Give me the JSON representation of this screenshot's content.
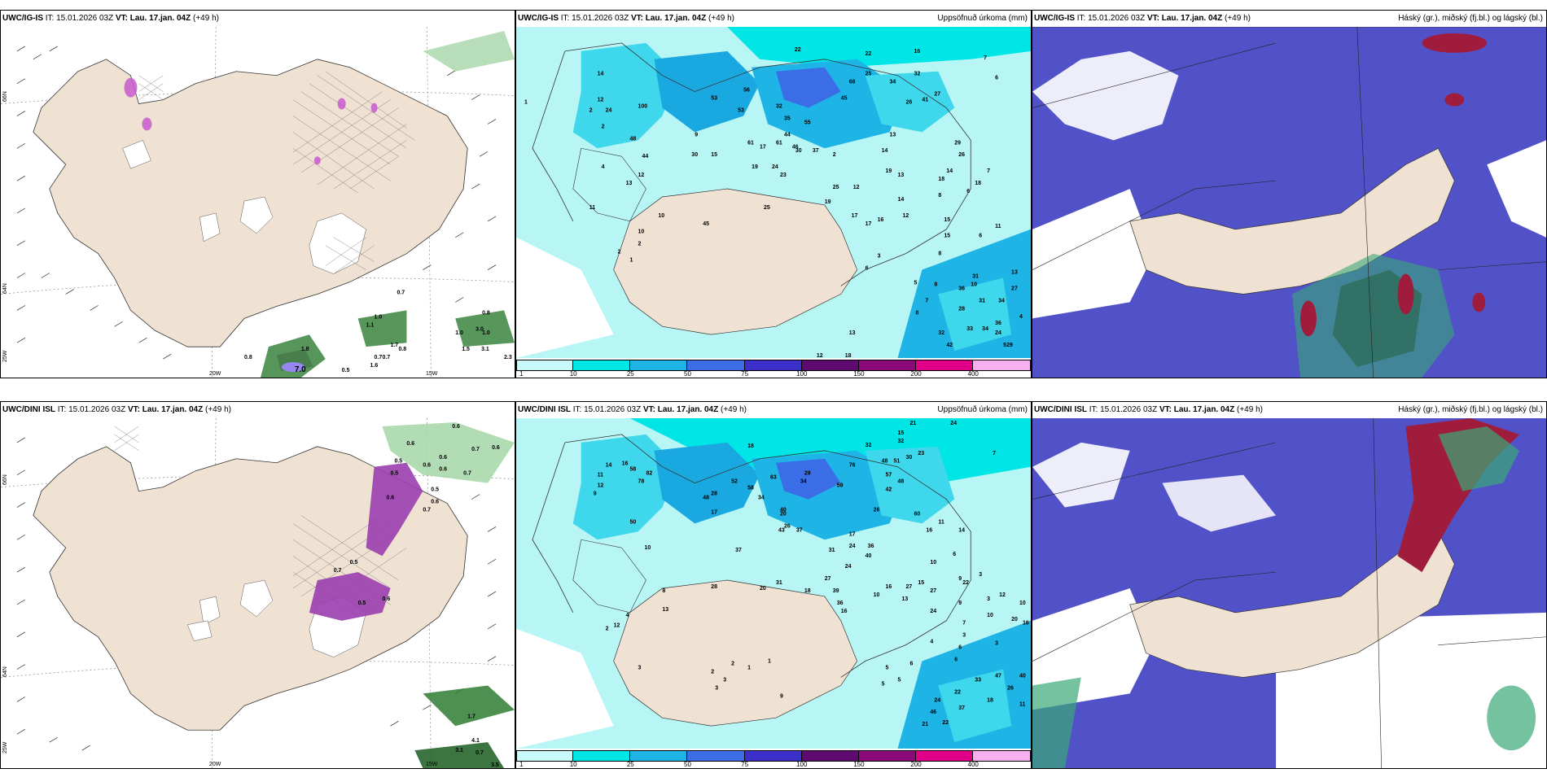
{
  "panels": [
    {
      "id": "p1",
      "model": "UWC/IG-IS",
      "it_label": "IT:",
      "it_value": "15.01.2026 03Z",
      "vt_label": "VT:",
      "vt_value": "Lau. 17.jan. 04Z",
      "lead": "(+49 h)",
      "right_title": "",
      "lat_labels": [
        "66N",
        "64N",
        "25W"
      ],
      "lon_labels": [
        "20W",
        "15W"
      ],
      "values": [
        "0.7",
        "1.0",
        "1.1",
        "0.8",
        "0.8",
        "1.0",
        "1.5",
        "3.1",
        "2.3",
        "1.0",
        "0.7",
        "1.8",
        "0.7",
        "7.0",
        "0.5",
        "1.6",
        "1.7",
        "0.8",
        "3.0"
      ]
    },
    {
      "id": "p2",
      "model": "UWC/IG-IS",
      "it_label": "IT:",
      "it_value": "15.01.2026 03Z",
      "vt_label": "VT:",
      "vt_value": "Lau. 17.jan. 04Z",
      "lead": "(+49 h)",
      "right_title": "Uppsöfnuð úrkoma (mm)",
      "values": [
        "22",
        "22",
        "16",
        "7",
        "14",
        "6",
        "53",
        "56",
        "66",
        "25",
        "34",
        "32",
        "7",
        "12",
        "24",
        "100",
        "32",
        "53",
        "35",
        "45",
        "26",
        "41",
        "27",
        "1",
        "2",
        "48",
        "55",
        "44",
        "61",
        "30",
        "2",
        "9",
        "61",
        "30",
        "17",
        "46",
        "37",
        "13",
        "29",
        "4",
        "44",
        "15",
        "19",
        "24",
        "14",
        "19",
        "26",
        "12",
        "13",
        "23",
        "25",
        "12",
        "13",
        "7",
        "14",
        "18",
        "18",
        "19",
        "6",
        "8",
        "11",
        "25",
        "10",
        "17",
        "17",
        "16",
        "12",
        "15",
        "14",
        "2",
        "15",
        "2",
        "1",
        "10",
        "45",
        "6",
        "8",
        "3",
        "5",
        "6",
        "8",
        "10",
        "13",
        "27",
        "7",
        "28",
        "31",
        "34",
        "8",
        "32",
        "33",
        "36",
        "34",
        "24",
        "29",
        "4",
        "42",
        "5",
        "12",
        "11",
        "31",
        "36",
        "13",
        "18"
      ],
      "colorbar": {
        "ticks": [
          "1",
          "10",
          "25",
          "50",
          "75",
          "100",
          "150",
          "200",
          "400"
        ],
        "colors": [
          "#c8fafa",
          "#00e5e5",
          "#1fb4e6",
          "#3b6ee6",
          "#3a2fc8",
          "#5e0a6e",
          "#8a0a7a",
          "#e0008a",
          "#f5b0f0"
        ]
      }
    },
    {
      "id": "p3",
      "model": "UWC/IG-IS",
      "it_label": "IT:",
      "it_value": "15.01.2026 03Z",
      "vt_label": "VT:",
      "vt_value": "Lau. 17.jan. 04Z",
      "lead": "(+49 h)",
      "right_title": "Háský (gr.), miðský (fj.bl.) og lágský (bl.)"
    },
    {
      "id": "p4",
      "model": "UWC/DINI ISL",
      "it_label": "IT:",
      "it_value": "15.01.2026 03Z",
      "vt_label": "VT:",
      "vt_value": "Lau. 17.jan. 04Z",
      "lead": "(+49 h)",
      "right_title": "",
      "lat_labels": [
        "66N",
        "64N",
        "25W"
      ],
      "lon_labels": [
        "20W",
        "15W"
      ],
      "values": [
        "0.6",
        "0.6",
        "0.7",
        "0.6",
        "0.5",
        "0.6",
        "0.6",
        "0.6",
        "0.7",
        "0.5",
        "0.6",
        "0.7",
        "0.5",
        "0.6",
        "0.5",
        "0.7",
        "0.5",
        "0.6",
        "3.1",
        "0.7",
        "4.1",
        "3.5",
        "1.7"
      ]
    },
    {
      "id": "p5",
      "model": "UWC/DINI ISL",
      "it_label": "IT:",
      "it_value": "15.01.2026 03Z",
      "vt_label": "VT:",
      "vt_value": "Lau. 17.jan. 04Z",
      "lead": "(+49 h)",
      "right_title": "Uppsöfnuð úrkoma (mm)",
      "values": [
        "21",
        "24",
        "32",
        "32",
        "18",
        "15",
        "23",
        "7",
        "14",
        "16",
        "76",
        "48",
        "51",
        "30",
        "11",
        "12",
        "58",
        "52",
        "63",
        "58",
        "59",
        "42",
        "48",
        "57",
        "82",
        "9",
        "78",
        "29",
        "60",
        "26",
        "28",
        "17",
        "48",
        "34",
        "34",
        "40",
        "17",
        "16",
        "50",
        "43",
        "37",
        "26",
        "10",
        "20",
        "37",
        "31",
        "24",
        "36",
        "40",
        "24",
        "27",
        "39",
        "31",
        "18",
        "11",
        "14",
        "27",
        "13",
        "9",
        "24",
        "9",
        "13",
        "36",
        "16",
        "8",
        "28",
        "10",
        "16",
        "27",
        "15",
        "20",
        "22",
        "10",
        "3",
        "4",
        "2",
        "12",
        "6",
        "10",
        "3",
        "7",
        "3",
        "6",
        "3",
        "6",
        "12",
        "10",
        "20",
        "16",
        "33",
        "47",
        "40",
        "26",
        "22",
        "24",
        "18",
        "4",
        "11",
        "46",
        "37",
        "21",
        "22",
        "3",
        "2",
        "3",
        "2",
        "3",
        "1",
        "1",
        "9",
        "5",
        "5",
        "5",
        "6"
      ],
      "colorbar": {
        "ticks": [
          "1",
          "10",
          "25",
          "50",
          "75",
          "100",
          "150",
          "200",
          "400"
        ],
        "colors": [
          "#c8fafa",
          "#00e5e5",
          "#1fb4e6",
          "#3b6ee6",
          "#3a2fc8",
          "#5e0a6e",
          "#8a0a7a",
          "#e0008a",
          "#f5b0f0"
        ]
      }
    },
    {
      "id": "p6",
      "model": "UWC/DINI ISL",
      "it_label": "IT:",
      "it_value": "15.01.2026 03Z",
      "vt_label": "VT:",
      "vt_value": "Lau. 17.jan. 04Z",
      "lead": "(+49 h)",
      "right_title": "Háský (gr.), miðský (fj.bl.) og lágský (bl.)"
    }
  ],
  "colors": {
    "land": "#efe2d2",
    "sea": "#ffffff",
    "precip_light": "#b8f5f5",
    "precip_mid": "#3fd7ec",
    "precip_high": "#1aa8e0",
    "cloud_low": "#5252c8",
    "cloud_high": "#a01c3c",
    "cloud_mid": "#3aa878",
    "snow_magenta": "#c85ad0",
    "green_precip": "#4caf50"
  }
}
